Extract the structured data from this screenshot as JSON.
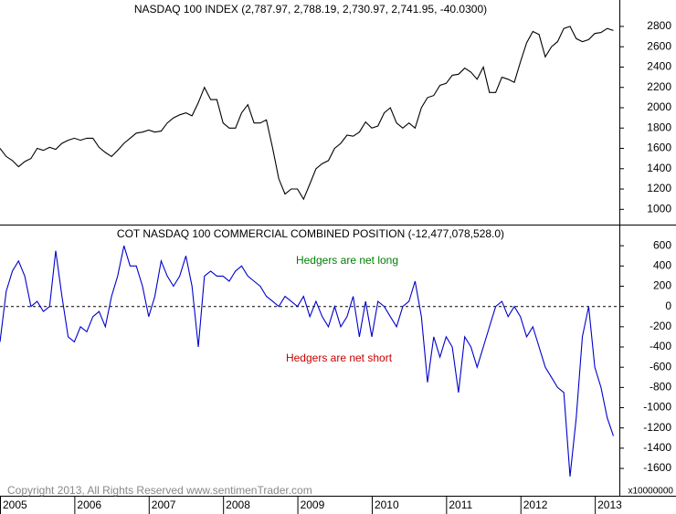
{
  "chart_data": [
    {
      "type": "line",
      "title": "NASDAQ 100 INDEX (2,787.97, 2,788.19, 2,730.97, 2,741.95, -40.0300)",
      "x": [
        2005,
        2005.083,
        2005.167,
        2005.25,
        2005.333,
        2005.417,
        2005.5,
        2005.583,
        2005.667,
        2005.75,
        2005.833,
        2005.917,
        2006,
        2006.083,
        2006.167,
        2006.25,
        2006.333,
        2006.417,
        2006.5,
        2006.583,
        2006.667,
        2006.75,
        2006.833,
        2006.917,
        2007,
        2007.083,
        2007.167,
        2007.25,
        2007.333,
        2007.417,
        2007.5,
        2007.583,
        2007.667,
        2007.75,
        2007.833,
        2007.917,
        2008,
        2008.083,
        2008.167,
        2008.25,
        2008.333,
        2008.417,
        2008.5,
        2008.583,
        2008.667,
        2008.75,
        2008.833,
        2008.917,
        2009,
        2009.083,
        2009.167,
        2009.25,
        2009.333,
        2009.417,
        2009.5,
        2009.583,
        2009.667,
        2009.75,
        2009.833,
        2009.917,
        2010,
        2010.083,
        2010.167,
        2010.25,
        2010.333,
        2010.417,
        2010.5,
        2010.583,
        2010.667,
        2010.75,
        2010.833,
        2010.917,
        2011,
        2011.083,
        2011.167,
        2011.25,
        2011.333,
        2011.417,
        2011.5,
        2011.583,
        2011.667,
        2011.75,
        2011.833,
        2011.917,
        2012,
        2012.083,
        2012.167,
        2012.25,
        2012.333,
        2012.417,
        2012.5,
        2012.583,
        2012.667,
        2012.75,
        2012.833,
        2012.917,
        2013,
        2013.083,
        2013.167,
        2013.25
      ],
      "series": [
        {
          "name": "NASDAQ 100",
          "color": "#000000",
          "values": [
            1600,
            1520,
            1480,
            1420,
            1470,
            1500,
            1600,
            1580,
            1610,
            1590,
            1650,
            1680,
            1700,
            1680,
            1700,
            1700,
            1610,
            1560,
            1520,
            1580,
            1650,
            1700,
            1750,
            1760,
            1780,
            1760,
            1770,
            1850,
            1900,
            1930,
            1950,
            1920,
            2050,
            2200,
            2080,
            2080,
            1850,
            1800,
            1800,
            1950,
            2030,
            1850,
            1850,
            1880,
            1600,
            1300,
            1150,
            1200,
            1200,
            1100,
            1250,
            1400,
            1450,
            1480,
            1600,
            1650,
            1730,
            1720,
            1760,
            1860,
            1800,
            1820,
            1950,
            2000,
            1850,
            1800,
            1850,
            1800,
            2000,
            2100,
            2120,
            2220,
            2240,
            2320,
            2330,
            2390,
            2350,
            2280,
            2400,
            2150,
            2150,
            2300,
            2280,
            2250,
            2450,
            2640,
            2750,
            2720,
            2500,
            2600,
            2650,
            2780,
            2800,
            2680,
            2650,
            2670,
            2730,
            2740,
            2780,
            2760
          ]
        }
      ],
      "xlim": [
        2005,
        2013.33
      ],
      "ylim": [
        850,
        3060
      ],
      "yticks": [
        1000,
        1200,
        1400,
        1600,
        1800,
        2000,
        2200,
        2400,
        2600,
        2800
      ]
    },
    {
      "type": "line",
      "title": "COT NASDAQ 100 COMMERCIAL COMBINED POSITION (-12,477,078,528.0)",
      "x": [
        2005,
        2005.083,
        2005.167,
        2005.25,
        2005.333,
        2005.417,
        2005.5,
        2005.583,
        2005.667,
        2005.75,
        2005.833,
        2005.917,
        2006,
        2006.083,
        2006.167,
        2006.25,
        2006.333,
        2006.417,
        2006.5,
        2006.583,
        2006.667,
        2006.75,
        2006.833,
        2006.917,
        2007,
        2007.083,
        2007.167,
        2007.25,
        2007.333,
        2007.417,
        2007.5,
        2007.583,
        2007.667,
        2007.75,
        2007.833,
        2007.917,
        2008,
        2008.083,
        2008.167,
        2008.25,
        2008.333,
        2008.417,
        2008.5,
        2008.583,
        2008.667,
        2008.75,
        2008.833,
        2008.917,
        2009,
        2009.083,
        2009.167,
        2009.25,
        2009.333,
        2009.417,
        2009.5,
        2009.583,
        2009.667,
        2009.75,
        2009.833,
        2009.917,
        2010,
        2010.083,
        2010.167,
        2010.25,
        2010.333,
        2010.417,
        2010.5,
        2010.583,
        2010.667,
        2010.75,
        2010.833,
        2010.917,
        2011,
        2011.083,
        2011.167,
        2011.25,
        2011.333,
        2011.417,
        2011.5,
        2011.583,
        2011.667,
        2011.75,
        2011.833,
        2011.917,
        2012,
        2012.083,
        2012.167,
        2012.25,
        2012.333,
        2012.417,
        2012.5,
        2012.583,
        2012.667,
        2012.75,
        2012.833,
        2012.917,
        2013,
        2013.083,
        2013.167,
        2013.25
      ],
      "series": [
        {
          "name": "Commercial Position",
          "color": "#0000cc",
          "values": [
            -350,
            150,
            350,
            450,
            300,
            0,
            50,
            -50,
            0,
            550,
            100,
            -300,
            -350,
            -200,
            -250,
            -100,
            -50,
            -200,
            100,
            300,
            600,
            400,
            400,
            200,
            -100,
            100,
            450,
            300,
            200,
            300,
            500,
            200,
            -400,
            300,
            350,
            300,
            300,
            250,
            350,
            400,
            300,
            250,
            200,
            100,
            50,
            0,
            100,
            50,
            0,
            100,
            -100,
            50,
            -100,
            -200,
            0,
            -200,
            -100,
            100,
            -300,
            50,
            -300,
            50,
            0,
            -100,
            -200,
            0,
            50,
            250,
            -100,
            -750,
            -300,
            -500,
            -300,
            -400,
            -850,
            -300,
            -400,
            -600,
            -400,
            -200,
            0,
            50,
            -100,
            0,
            -100,
            -300,
            -200,
            -400,
            -600,
            -700,
            -800,
            -850,
            -1680,
            -1100,
            -300,
            0,
            -600,
            -800,
            -1100,
            -1280
          ]
        }
      ],
      "xlim": [
        2005,
        2013.33
      ],
      "ylim": [
        -1870,
        800
      ],
      "yticks": [
        600,
        400,
        200,
        0,
        -200,
        -400,
        -600,
        -800,
        -1000,
        -1200,
        -1400,
        -1600
      ],
      "xticks": [
        2005,
        2006,
        2007,
        2008,
        2009,
        2010,
        2011,
        2012,
        2013
      ],
      "reference_line": 0,
      "y_label": "x10000000",
      "annotations": [
        {
          "text": "Hedgers are net long",
          "color": "#008000"
        },
        {
          "text": "Hedgers are net short",
          "color": "#cc0000"
        }
      ]
    }
  ],
  "watermark": "Copyright 2013, All Rights Reserved  www.sentimenTrader.com"
}
